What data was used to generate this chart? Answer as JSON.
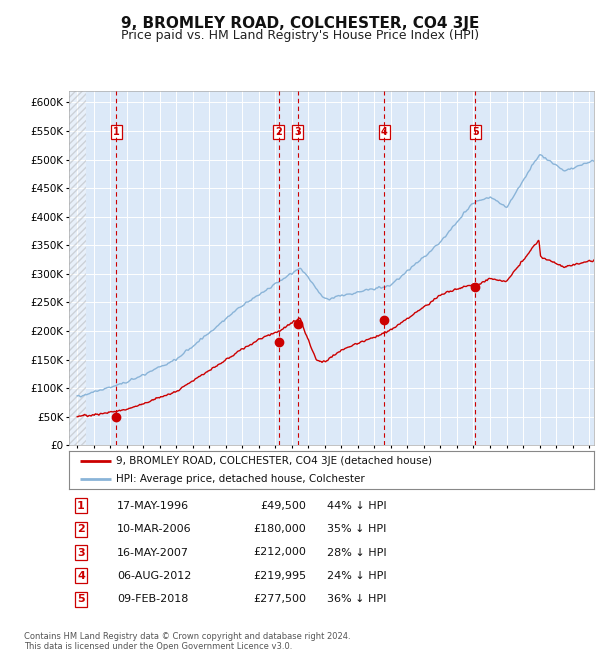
{
  "title": "9, BROMLEY ROAD, COLCHESTER, CO4 3JE",
  "subtitle": "Price paid vs. HM Land Registry's House Price Index (HPI)",
  "x_start_year": 1994,
  "x_end_year": 2025,
  "y_min": 0,
  "y_max": 620000,
  "y_ticks": [
    0,
    50000,
    100000,
    150000,
    200000,
    250000,
    300000,
    350000,
    400000,
    450000,
    500000,
    550000,
    600000
  ],
  "y_tick_labels": [
    "£0",
    "£50K",
    "£100K",
    "£150K",
    "£200K",
    "£250K",
    "£300K",
    "£350K",
    "£400K",
    "£450K",
    "£500K",
    "£550K",
    "£600K"
  ],
  "sales": [
    {
      "num": 1,
      "date_yr": 1996.375,
      "price": 49500,
      "label": "17-MAY-1996",
      "pct": "44% ↓ HPI"
    },
    {
      "num": 2,
      "date_yr": 2006.19,
      "price": 180000,
      "label": "10-MAR-2006",
      "pct": "35% ↓ HPI"
    },
    {
      "num": 3,
      "date_yr": 2007.37,
      "price": 212000,
      "label": "16-MAY-2007",
      "pct": "28% ↓ HPI"
    },
    {
      "num": 4,
      "date_yr": 2012.6,
      "price": 219995,
      "label": "06-AUG-2012",
      "pct": "24% ↓ HPI"
    },
    {
      "num": 5,
      "date_yr": 2018.1,
      "price": 277500,
      "label": "09-FEB-2018",
      "pct": "36% ↓ HPI"
    }
  ],
  "legend_line1": "9, BROMLEY ROAD, COLCHESTER, CO4 3JE (detached house)",
  "legend_line2": "HPI: Average price, detached house, Colchester",
  "footnote1": "Contains HM Land Registry data © Crown copyright and database right 2024.",
  "footnote2": "This data is licensed under the Open Government Licence v3.0.",
  "plot_bg_color": "#dce9f8",
  "grid_color": "#ffffff",
  "hpi_line_color": "#8ab4d8",
  "price_line_color": "#cc0000",
  "vline_color": "#cc0000",
  "marker_color": "#cc0000",
  "title_fontsize": 11,
  "subtitle_fontsize": 9
}
